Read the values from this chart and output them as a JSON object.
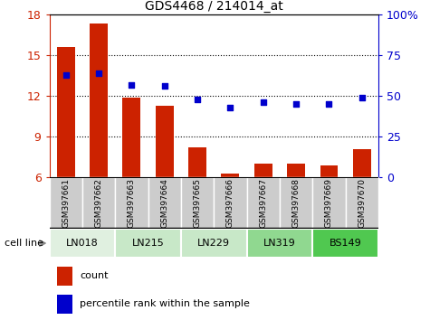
{
  "title": "GDS4468 / 214014_at",
  "samples": [
    "GSM397661",
    "GSM397662",
    "GSM397663",
    "GSM397664",
    "GSM397665",
    "GSM397666",
    "GSM397667",
    "GSM397668",
    "GSM397669",
    "GSM397670"
  ],
  "count": [
    15.6,
    17.3,
    11.9,
    11.3,
    8.2,
    6.3,
    7.0,
    7.0,
    6.9,
    8.1
  ],
  "percentile": [
    63,
    64,
    57,
    56,
    48,
    43,
    46,
    45,
    45,
    49
  ],
  "cell_lines": [
    {
      "label": "LN018",
      "start": 0,
      "end": 2,
      "color": "#e0f0e0"
    },
    {
      "label": "LN215",
      "start": 2,
      "end": 4,
      "color": "#c8e8c8"
    },
    {
      "label": "LN229",
      "start": 4,
      "end": 6,
      "color": "#c8e8c8"
    },
    {
      "label": "LN319",
      "start": 6,
      "end": 8,
      "color": "#90d890"
    },
    {
      "label": "BS149",
      "start": 8,
      "end": 10,
      "color": "#50c850"
    }
  ],
  "bar_color": "#cc2200",
  "scatter_color": "#0000cc",
  "left_ylim": [
    6,
    18
  ],
  "left_yticks": [
    6,
    9,
    12,
    15,
    18
  ],
  "right_ylim": [
    0,
    100
  ],
  "right_yticks": [
    0,
    25,
    50,
    75,
    100
  ],
  "right_yticklabels": [
    "0",
    "25",
    "50",
    "75",
    "100%"
  ],
  "bar_width": 0.55,
  "gray_box_color": "#cccccc",
  "cell_line_border": "#000000"
}
